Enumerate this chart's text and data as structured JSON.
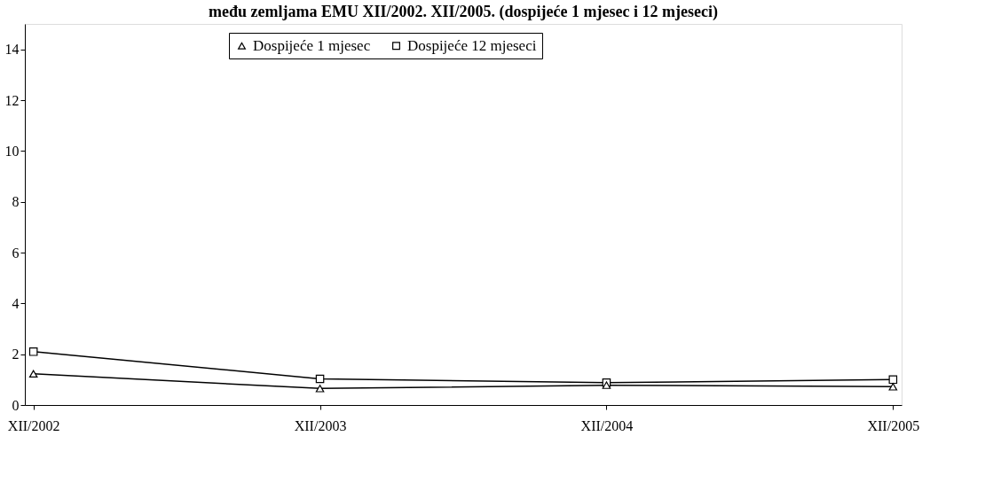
{
  "chart_data": {
    "type": "line",
    "title": "među zemljama EMU XII/2002. XII/2005. (dospijeće 1 mjesec i 12 mjeseci)",
    "categories": [
      "XII/2002",
      "XII/2003",
      "XII/2004",
      "XII/2005"
    ],
    "series": [
      {
        "name": "Dospijeće 1 mjesec",
        "color": "#000000",
        "marker": "triangle",
        "values": [
          1.23,
          0.65,
          0.78,
          0.72
        ]
      },
      {
        "name": "Dospijeće 12 mjeseci",
        "color": "#000000",
        "marker": "square",
        "values": [
          2.1,
          1.03,
          0.88,
          1.0
        ]
      }
    ],
    "ylim": [
      0,
      15
    ],
    "yticks": [
      0,
      2,
      4,
      6,
      8,
      10,
      12,
      14
    ],
    "grid": false,
    "legend": "top",
    "line_style": "solid"
  }
}
